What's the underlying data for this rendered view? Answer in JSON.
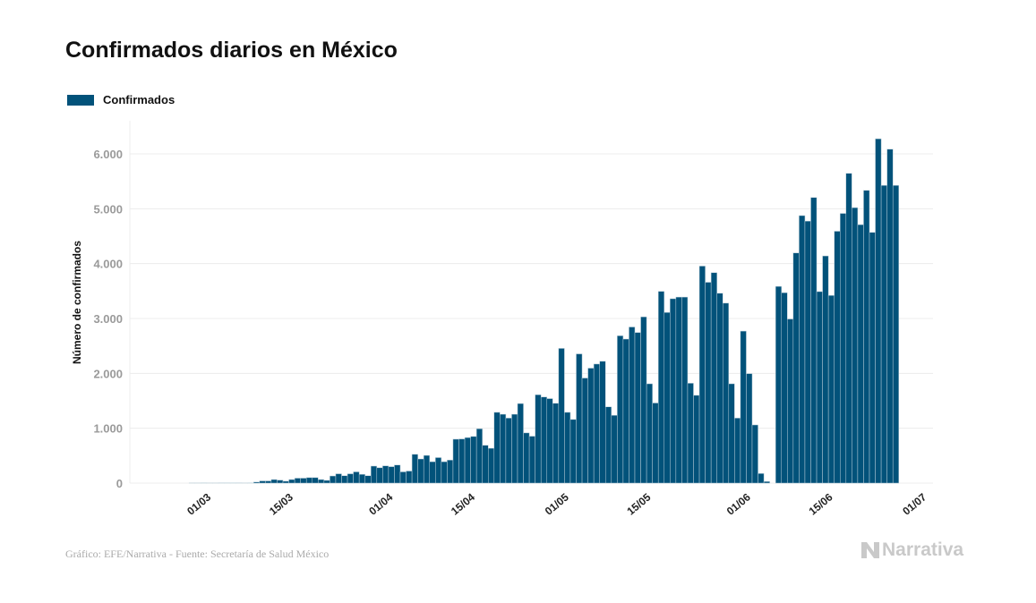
{
  "title": "Confirmados diarios en México",
  "source": "Gráfico: EFE/Narrativa - Fuente: Secretaría de Salud México",
  "logo_text": "Narrativa",
  "colors": {
    "bar": "#02527a",
    "grid": "#ececec",
    "logo": "#c9c9c9"
  },
  "chart_data": {
    "type": "bar",
    "title": "Confirmados diarios en México",
    "xlabel": "",
    "ylabel": "Número de confirmados",
    "ylim": [
      0,
      6600
    ],
    "grid": true,
    "legend": {
      "position": "top-left",
      "entries": [
        "Confirmados"
      ]
    },
    "start_date": "24/02",
    "yticks": [
      {
        "value": 0,
        "label": "0"
      },
      {
        "value": 1000,
        "label": "1.000"
      },
      {
        "value": 2000,
        "label": "2.000"
      },
      {
        "value": 3000,
        "label": "3.000"
      },
      {
        "value": 4000,
        "label": "4.000"
      },
      {
        "value": 5000,
        "label": "5.000"
      },
      {
        "value": 6000,
        "label": "6.000"
      }
    ],
    "xticks": [
      {
        "day": 6,
        "label": "01/03"
      },
      {
        "day": 20,
        "label": "15/03"
      },
      {
        "day": 37,
        "label": "01/04"
      },
      {
        "day": 51,
        "label": "15/04"
      },
      {
        "day": 67,
        "label": "01/05"
      },
      {
        "day": 81,
        "label": "15/05"
      },
      {
        "day": 98,
        "label": "01/06"
      },
      {
        "day": 112,
        "label": "15/06"
      },
      {
        "day": 128,
        "label": "01/07"
      }
    ],
    "series": [
      {
        "name": "Confirmados",
        "values": [
          0,
          0,
          0,
          0,
          1,
          1,
          2,
          1,
          1,
          3,
          2,
          4,
          3,
          1,
          4,
          20,
          40,
          40,
          65,
          55,
          35,
          65,
          90,
          90,
          100,
          100,
          65,
          50,
          130,
          170,
          135,
          170,
          205,
          160,
          135,
          310,
          280,
          315,
          300,
          330,
          205,
          220,
          525,
          440,
          505,
          390,
          465,
          390,
          420,
          800,
          805,
          830,
          850,
          990,
          690,
          635,
          1290,
          1255,
          1185,
          1255,
          1450,
          915,
          855,
          1610,
          1570,
          1540,
          1455,
          2455,
          1290,
          1160,
          2355,
          1915,
          2095,
          2170,
          2220,
          1390,
          1235,
          2685,
          2625,
          2845,
          2745,
          3030,
          1810,
          1460,
          3495,
          3110,
          3360,
          3390,
          3390,
          1820,
          1600,
          3955,
          3660,
          3835,
          3460,
          3280,
          1810,
          1185,
          2770,
          1995,
          1060,
          175,
          30,
          0,
          3585,
          3470,
          2990,
          4195,
          4875,
          4775,
          5205,
          3490,
          4140,
          3420,
          4590,
          4915,
          5645,
          5020,
          4710,
          5335,
          4570,
          6275,
          5425,
          6085,
          5425
        ]
      }
    ]
  }
}
